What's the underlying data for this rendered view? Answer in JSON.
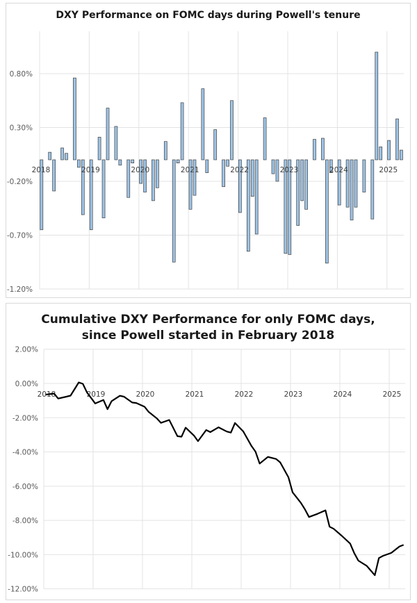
{
  "chart_data": [
    {
      "type": "bar",
      "title": "DXY Performance on FOMC days during Powell's tenure",
      "xlabel": "",
      "ylabel": "",
      "x_tick_labels": [
        "2018",
        "2019",
        "2020",
        "2021",
        "2022",
        "2023",
        "2024",
        "2025"
      ],
      "y_tick_labels": [
        "0.80%",
        "0.30%",
        "-0.20%",
        "-0.70%",
        "-1.20%"
      ],
      "y_ticks": [
        0.8,
        0.3,
        -0.2,
        -0.7,
        -1.2
      ],
      "ylim": [
        -1.2,
        1.2
      ],
      "grid": true,
      "bar_color": "#9dc3e6",
      "bar_edge_color": "#404040",
      "x": [
        "2018-01",
        "2018-03",
        "2018-04",
        "2018-06",
        "2018-07",
        "2018-09",
        "2018-10",
        "2018-11",
        "2019-01",
        "2019-03",
        "2019-04",
        "2019-05",
        "2019-07",
        "2019-08",
        "2019-10",
        "2019-11",
        "2020-01",
        "2020-02",
        "2020-04",
        "2020-05",
        "2020-07",
        "2020-09",
        "2020-10",
        "2020-11",
        "2021-01",
        "2021-02",
        "2021-04",
        "2021-05",
        "2021-07",
        "2021-09",
        "2021-10",
        "2021-11",
        "2022-01",
        "2022-03",
        "2022-04",
        "2022-05",
        "2022-07",
        "2022-09",
        "2022-10",
        "2022-12",
        "2023-01",
        "2023-03",
        "2023-04",
        "2023-05",
        "2023-07",
        "2023-09",
        "2023-10",
        "2023-11",
        "2024-01",
        "2024-03",
        "2024-04",
        "2024-05",
        "2024-07",
        "2024-09",
        "2024-10",
        "2024-11",
        "2025-01",
        "2025-03",
        "2025-04"
      ],
      "values": [
        -0.65,
        0.07,
        -0.29,
        0.11,
        0.06,
        0.76,
        -0.07,
        -0.51,
        -0.65,
        0.21,
        -0.54,
        0.48,
        0.31,
        -0.05,
        -0.35,
        -0.03,
        -0.22,
        -0.3,
        -0.38,
        -0.26,
        0.17,
        -0.95,
        -0.03,
        0.53,
        -0.46,
        -0.33,
        0.66,
        -0.12,
        0.28,
        -0.25,
        -0.06,
        0.55,
        -0.49,
        -0.85,
        -0.34,
        -0.69,
        0.39,
        -0.13,
        -0.2,
        -0.87,
        -0.88,
        -0.61,
        -0.38,
        -0.46,
        0.19,
        0.2,
        -0.96,
        -0.12,
        -0.42,
        -0.44,
        -0.56,
        -0.44,
        -0.3,
        -0.55,
        1.0,
        0.12,
        0.18,
        0.38,
        0.09
      ]
    },
    {
      "type": "line",
      "title": [
        "Cumulative DXY Performance for only FOMC days,",
        "since Powell started in February 2018"
      ],
      "xlabel": "",
      "ylabel": "",
      "x_tick_labels": [
        "2018",
        "2019",
        "2020",
        "2021",
        "2022",
        "2023",
        "2024",
        "2025"
      ],
      "y_tick_labels": [
        "2.00%",
        "0.00%",
        "-2.00%",
        "-4.00%",
        "-6.00%",
        "-8.00%",
        "-10.00%",
        "-12.00%"
      ],
      "y_ticks": [
        2,
        0,
        -2,
        -4,
        -6,
        -8,
        -10,
        -12
      ],
      "ylim": [
        -12,
        2
      ],
      "grid": true,
      "line_color": "#000000",
      "x": [
        "2018-01",
        "2018-03",
        "2018-04",
        "2018-06",
        "2018-07",
        "2018-09",
        "2018-10",
        "2018-11",
        "2019-01",
        "2019-03",
        "2019-04",
        "2019-05",
        "2019-07",
        "2019-08",
        "2019-10",
        "2019-11",
        "2020-01",
        "2020-02",
        "2020-04",
        "2020-05",
        "2020-07",
        "2020-09",
        "2020-10",
        "2020-11",
        "2021-01",
        "2021-02",
        "2021-04",
        "2021-05",
        "2021-07",
        "2021-09",
        "2021-10",
        "2021-11",
        "2022-01",
        "2022-03",
        "2022-04",
        "2022-05",
        "2022-07",
        "2022-09",
        "2022-10",
        "2022-12",
        "2023-01",
        "2023-03",
        "2023-04",
        "2023-05",
        "2023-07",
        "2023-09",
        "2023-10",
        "2023-11",
        "2024-01",
        "2024-03",
        "2024-04",
        "2024-05",
        "2024-07",
        "2024-09",
        "2024-10",
        "2024-11",
        "2025-01",
        "2025-03",
        "2025-04"
      ],
      "values": [
        -0.65,
        -0.59,
        -0.88,
        -0.77,
        -0.71,
        0.06,
        -0.02,
        -0.52,
        -1.17,
        -0.96,
        -1.5,
        -1.03,
        -0.72,
        -0.77,
        -1.11,
        -1.14,
        -1.36,
        -1.66,
        -2.04,
        -2.3,
        -2.13,
        -3.08,
        -3.11,
        -2.58,
        -3.04,
        -3.37,
        -2.72,
        -2.84,
        -2.56,
        -2.81,
        -2.87,
        -2.31,
        -2.8,
        -3.65,
        -3.99,
        -4.68,
        -4.29,
        -4.41,
        -4.61,
        -5.48,
        -6.36,
        -6.97,
        -7.35,
        -7.8,
        -7.62,
        -7.41,
        -8.37,
        -8.49,
        -8.91,
        -9.35,
        -9.91,
        -10.35,
        -10.65,
        -11.2,
        -10.2,
        -10.07,
        -9.9,
        -9.52,
        -9.43
      ]
    }
  ]
}
